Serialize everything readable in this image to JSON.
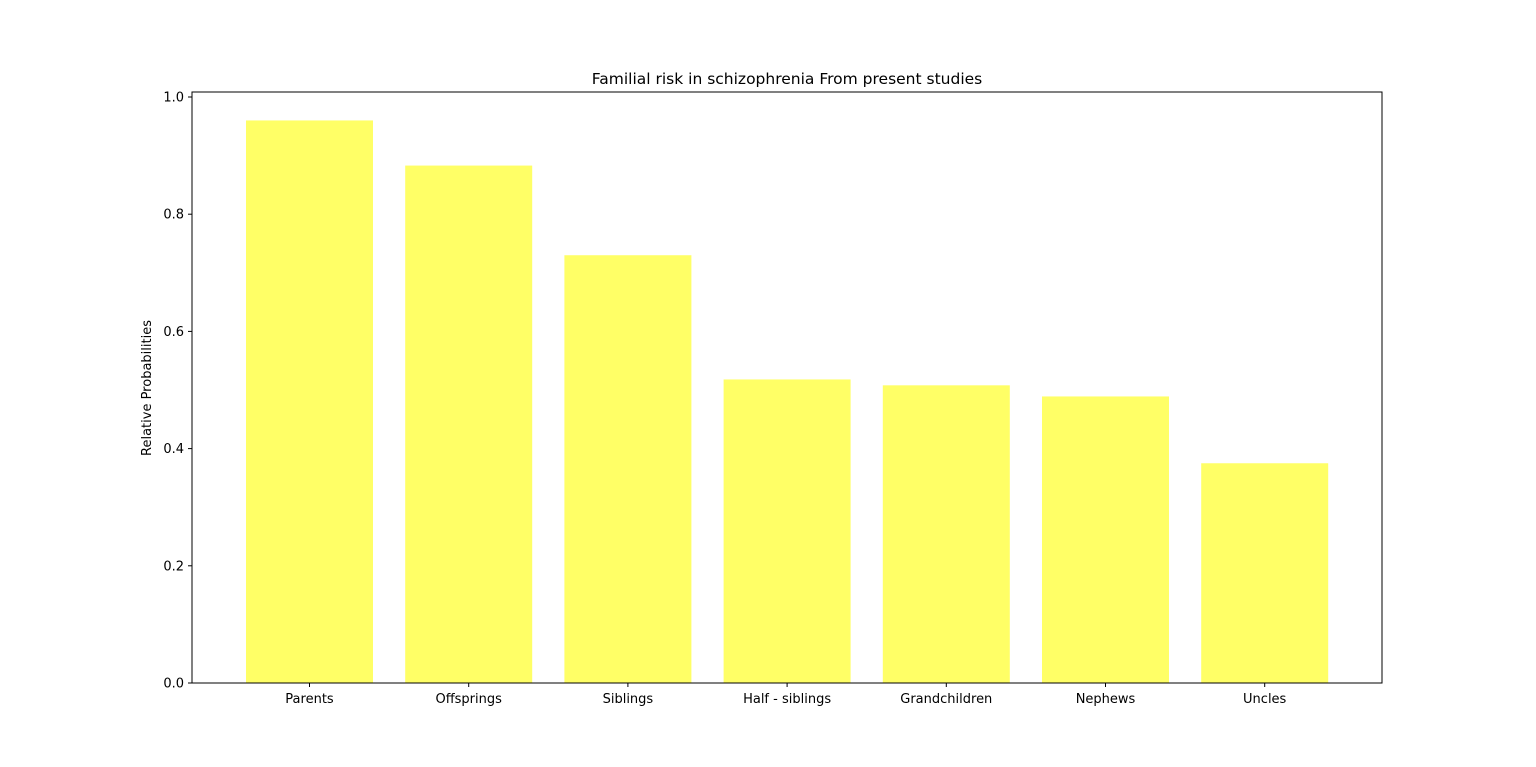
{
  "chart_data": {
    "type": "bar",
    "title": "Familial risk in schizophrenia From present studies",
    "xlabel": "",
    "ylabel": "Relative Probabilities",
    "categories": [
      "Parents",
      "Offsprings",
      "Siblings",
      "Half - siblings",
      "Grandchildren",
      "Nephews",
      "Uncles"
    ],
    "values": [
      0.96,
      0.883,
      0.73,
      0.518,
      0.508,
      0.489,
      0.375
    ],
    "ylim": [
      0,
      1.0
    ],
    "yticks": [
      "0.0",
      "0.2",
      "0.4",
      "0.6",
      "0.8",
      "1.0"
    ],
    "grid": false,
    "legend": "none",
    "bar_color": "#ffff66"
  }
}
